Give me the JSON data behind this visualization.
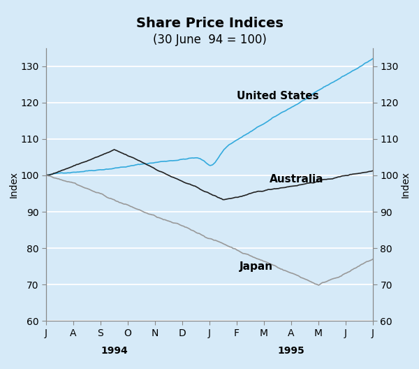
{
  "title": "Share Price Indices",
  "subtitle": "(30 June  94 = 100)",
  "ylabel_left": "Index",
  "ylabel_right": "Index",
  "ylim": [
    60,
    135
  ],
  "yticks": [
    60,
    70,
    80,
    90,
    100,
    110,
    120,
    130
  ],
  "background_color": "#d6eaf8",
  "plot_bg_color": "#d6eaf8",
  "grid_color": "#ffffff",
  "xtick_labels": [
    "J",
    "A",
    "S",
    "O",
    "N",
    "D",
    "J",
    "F",
    "M",
    "A",
    "M",
    "J",
    "J"
  ],
  "us_label": "United States",
  "aus_label": "Australia",
  "jpn_label": "Japan",
  "us_color": "#33aadd",
  "aus_color": "#222222",
  "jpn_color": "#999999",
  "line_width": 1.2,
  "n_points": 260,
  "title_fontsize": 14,
  "subtitle_fontsize": 12,
  "axis_label_fontsize": 10,
  "tick_fontsize": 10,
  "annotation_fontsize": 11
}
